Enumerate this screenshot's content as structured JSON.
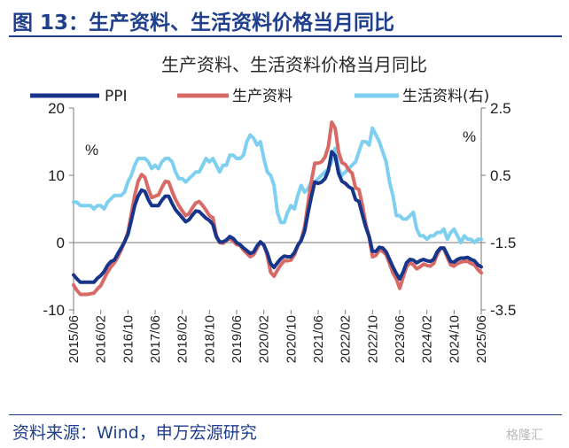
{
  "figure": {
    "label": "图 13：生产资料、生活资料价格当月同比",
    "source": "资料来源：Wind，申万宏源研究",
    "watermark": "格隆汇"
  },
  "colors": {
    "ppi": "#17358a",
    "production": "#d86a66",
    "living": "#7fd0f0",
    "accent": "#1f3e8c"
  },
  "chart_data": {
    "type": "line",
    "title": "生产资料、生活资料价格当月同比",
    "xlabel": "",
    "ylabel": "%",
    "y2label": "%",
    "ylim": [
      -10,
      20
    ],
    "yticks": [
      -10,
      0,
      10,
      20
    ],
    "y2lim": [
      -3.5,
      2.5
    ],
    "y2ticks": [
      -3.5,
      -1.5,
      0.5,
      2.5
    ],
    "grid": false,
    "legend": "top",
    "xtick_labels": [
      "2015/06",
      "2016/02",
      "2016/10",
      "2017/06",
      "2018/02",
      "2018/10",
      "2019/06",
      "2020/02",
      "2020/10",
      "2021/06",
      "2022/02",
      "2022/10",
      "2023/06",
      "2024/02",
      "2024/10",
      "2025/06"
    ],
    "x": [
      "2015/06",
      "2015/07",
      "2015/08",
      "2015/09",
      "2015/10",
      "2015/11",
      "2015/12",
      "2016/01",
      "2016/02",
      "2016/03",
      "2016/04",
      "2016/05",
      "2016/06",
      "2016/07",
      "2016/08",
      "2016/09",
      "2016/10",
      "2016/11",
      "2016/12",
      "2017/01",
      "2017/02",
      "2017/03",
      "2017/04",
      "2017/05",
      "2017/06",
      "2017/07",
      "2017/08",
      "2017/09",
      "2017/10",
      "2017/11",
      "2017/12",
      "2018/01",
      "2018/02",
      "2018/03",
      "2018/04",
      "2018/05",
      "2018/06",
      "2018/07",
      "2018/08",
      "2018/09",
      "2018/10",
      "2018/11",
      "2018/12",
      "2019/01",
      "2019/02",
      "2019/03",
      "2019/04",
      "2019/05",
      "2019/06",
      "2019/07",
      "2019/08",
      "2019/09",
      "2019/10",
      "2019/11",
      "2019/12",
      "2020/01",
      "2020/02",
      "2020/03",
      "2020/04",
      "2020/05",
      "2020/06",
      "2020/07",
      "2020/08",
      "2020/09",
      "2020/10",
      "2020/11",
      "2020/12",
      "2021/01",
      "2021/02",
      "2021/03",
      "2021/04",
      "2021/05",
      "2021/06",
      "2021/07",
      "2021/08",
      "2021/09",
      "2021/10",
      "2021/11",
      "2021/12",
      "2022/01",
      "2022/02",
      "2022/03",
      "2022/04",
      "2022/05",
      "2022/06",
      "2022/07",
      "2022/08",
      "2022/09",
      "2022/10",
      "2022/11",
      "2022/12",
      "2023/01",
      "2023/02",
      "2023/03",
      "2023/04",
      "2023/05",
      "2023/06",
      "2023/07",
      "2023/08",
      "2023/09",
      "2023/10",
      "2023/11",
      "2023/12",
      "2024/01",
      "2024/02",
      "2024/03",
      "2024/04",
      "2024/05",
      "2024/06",
      "2024/07",
      "2024/08",
      "2024/09",
      "2024/10",
      "2024/11",
      "2024/12",
      "2025/01",
      "2025/02",
      "2025/03",
      "2025/04",
      "2025/05",
      "2025/06"
    ],
    "series": [
      {
        "name": "PPI",
        "axis": "left",
        "values": [
          -4.8,
          -5.4,
          -5.9,
          -5.9,
          -5.9,
          -5.9,
          -5.9,
          -5.3,
          -4.9,
          -4.3,
          -3.4,
          -2.8,
          -2.6,
          -1.7,
          -0.8,
          0.1,
          1.2,
          3.3,
          5.5,
          6.9,
          7.8,
          7.6,
          6.4,
          5.5,
          5.5,
          5.5,
          6.3,
          6.9,
          6.9,
          5.8,
          4.9,
          4.3,
          3.7,
          3.1,
          3.4,
          4.1,
          4.7,
          4.6,
          4.1,
          3.6,
          3.3,
          2.7,
          0.9,
          0.1,
          0.1,
          0.4,
          0.9,
          0.6,
          0.0,
          -0.3,
          -0.8,
          -1.2,
          -1.6,
          -1.4,
          -0.5,
          0.1,
          -0.4,
          -1.5,
          -3.1,
          -3.7,
          -3.0,
          -2.4,
          -2.0,
          -2.1,
          -2.1,
          -1.5,
          -0.4,
          0.3,
          1.7,
          4.4,
          6.8,
          9.0,
          8.8,
          9.0,
          9.5,
          10.7,
          13.5,
          12.9,
          10.3,
          9.1,
          8.8,
          8.3,
          8.0,
          6.4,
          6.1,
          4.2,
          2.3,
          0.9,
          -1.3,
          -1.3,
          -0.7,
          -0.8,
          -1.4,
          -2.5,
          -3.6,
          -4.6,
          -5.4,
          -4.4,
          -3.0,
          -2.5,
          -2.6,
          -3.0,
          -2.7,
          -2.5,
          -2.7,
          -2.8,
          -2.5,
          -1.4,
          -0.8,
          -0.8,
          -1.8,
          -2.8,
          -2.9,
          -2.5,
          -2.3,
          -2.3,
          -2.2,
          -2.5,
          -2.7,
          -3.3,
          -3.6
        ]
      },
      {
        "name": "生产资料",
        "axis": "left",
        "values": [
          -6.3,
          -7.1,
          -7.7,
          -7.7,
          -7.7,
          -7.6,
          -7.5,
          -6.9,
          -6.4,
          -5.4,
          -4.4,
          -3.6,
          -3.0,
          -2.2,
          -1.1,
          0.1,
          1.5,
          4.3,
          7.0,
          9.1,
          10.1,
          9.7,
          8.0,
          6.7,
          6.9,
          7.1,
          8.2,
          9.1,
          9.0,
          7.6,
          6.4,
          5.5,
          4.7,
          4.0,
          4.3,
          5.2,
          5.9,
          6.1,
          5.5,
          4.8,
          4.0,
          3.7,
          1.1,
          0.0,
          -0.1,
          0.3,
          0.6,
          0.2,
          -0.3,
          -0.4,
          -1.1,
          -1.6,
          -2.1,
          -1.8,
          -0.9,
          0.1,
          -0.3,
          -1.9,
          -4.4,
          -5.0,
          -4.1,
          -3.3,
          -2.7,
          -2.7,
          -2.6,
          -1.8,
          -0.5,
          0.4,
          2.3,
          5.8,
          9.1,
          11.8,
          11.8,
          12.0,
          12.7,
          14.3,
          17.9,
          17.0,
          13.5,
          11.9,
          11.6,
          10.8,
          10.3,
          8.1,
          7.9,
          5.6,
          2.8,
          0.8,
          -2.1,
          -1.9,
          -1.1,
          -1.3,
          -1.8,
          -3.1,
          -4.5,
          -5.4,
          -6.8,
          -5.2,
          -3.6,
          -3.0,
          -3.3,
          -3.9,
          -3.6,
          -3.2,
          -3.4,
          -3.5,
          -3.1,
          -1.8,
          -0.9,
          -0.9,
          -2.2,
          -3.3,
          -3.5,
          -3.1,
          -2.9,
          -2.8,
          -2.8,
          -3.1,
          -3.3,
          -4.0,
          -4.5
        ]
      },
      {
        "name": "生活资料(右)",
        "axis": "right",
        "values": [
          -0.3,
          -0.3,
          -0.4,
          -0.4,
          -0.4,
          -0.4,
          -0.5,
          -0.4,
          -0.4,
          -0.5,
          -0.3,
          -0.2,
          -0.1,
          -0.1,
          -0.1,
          0.0,
          0.3,
          0.5,
          0.8,
          1.0,
          1.0,
          1.0,
          0.9,
          0.7,
          0.8,
          0.7,
          0.9,
          1.0,
          1.0,
          0.9,
          0.6,
          0.4,
          0.4,
          0.3,
          0.4,
          0.5,
          0.6,
          0.6,
          0.8,
          1.0,
          0.9,
          1.0,
          0.8,
          0.6,
          0.8,
          0.8,
          1.1,
          1.1,
          1.0,
          1.0,
          1.1,
          1.5,
          1.7,
          1.6,
          1.4,
          1.5,
          1.0,
          0.6,
          0.5,
          0.2,
          -0.6,
          -0.9,
          -0.9,
          -0.6,
          -0.4,
          -0.5,
          -0.1,
          0.2,
          0.0,
          0.1,
          0.3,
          0.3,
          0.4,
          0.5,
          0.6,
          0.7,
          0.9,
          1.3,
          0.7,
          0.5,
          0.6,
          0.7,
          0.8,
          0.9,
          1.2,
          1.5,
          1.5,
          1.4,
          1.9,
          1.7,
          1.5,
          1.2,
          0.9,
          0.3,
          -0.1,
          -0.7,
          -0.7,
          -0.8,
          -0.8,
          -0.7,
          -0.6,
          -1.1,
          -1.3,
          -1.3,
          -1.4,
          -1.3,
          -1.3,
          -1.2,
          -1.2,
          -1.1,
          -1.4,
          -1.2,
          -1.1,
          -1.3,
          -1.5,
          -1.3,
          -1.4,
          -1.4,
          -1.5,
          -1.4,
          -1.4
        ]
      }
    ]
  }
}
